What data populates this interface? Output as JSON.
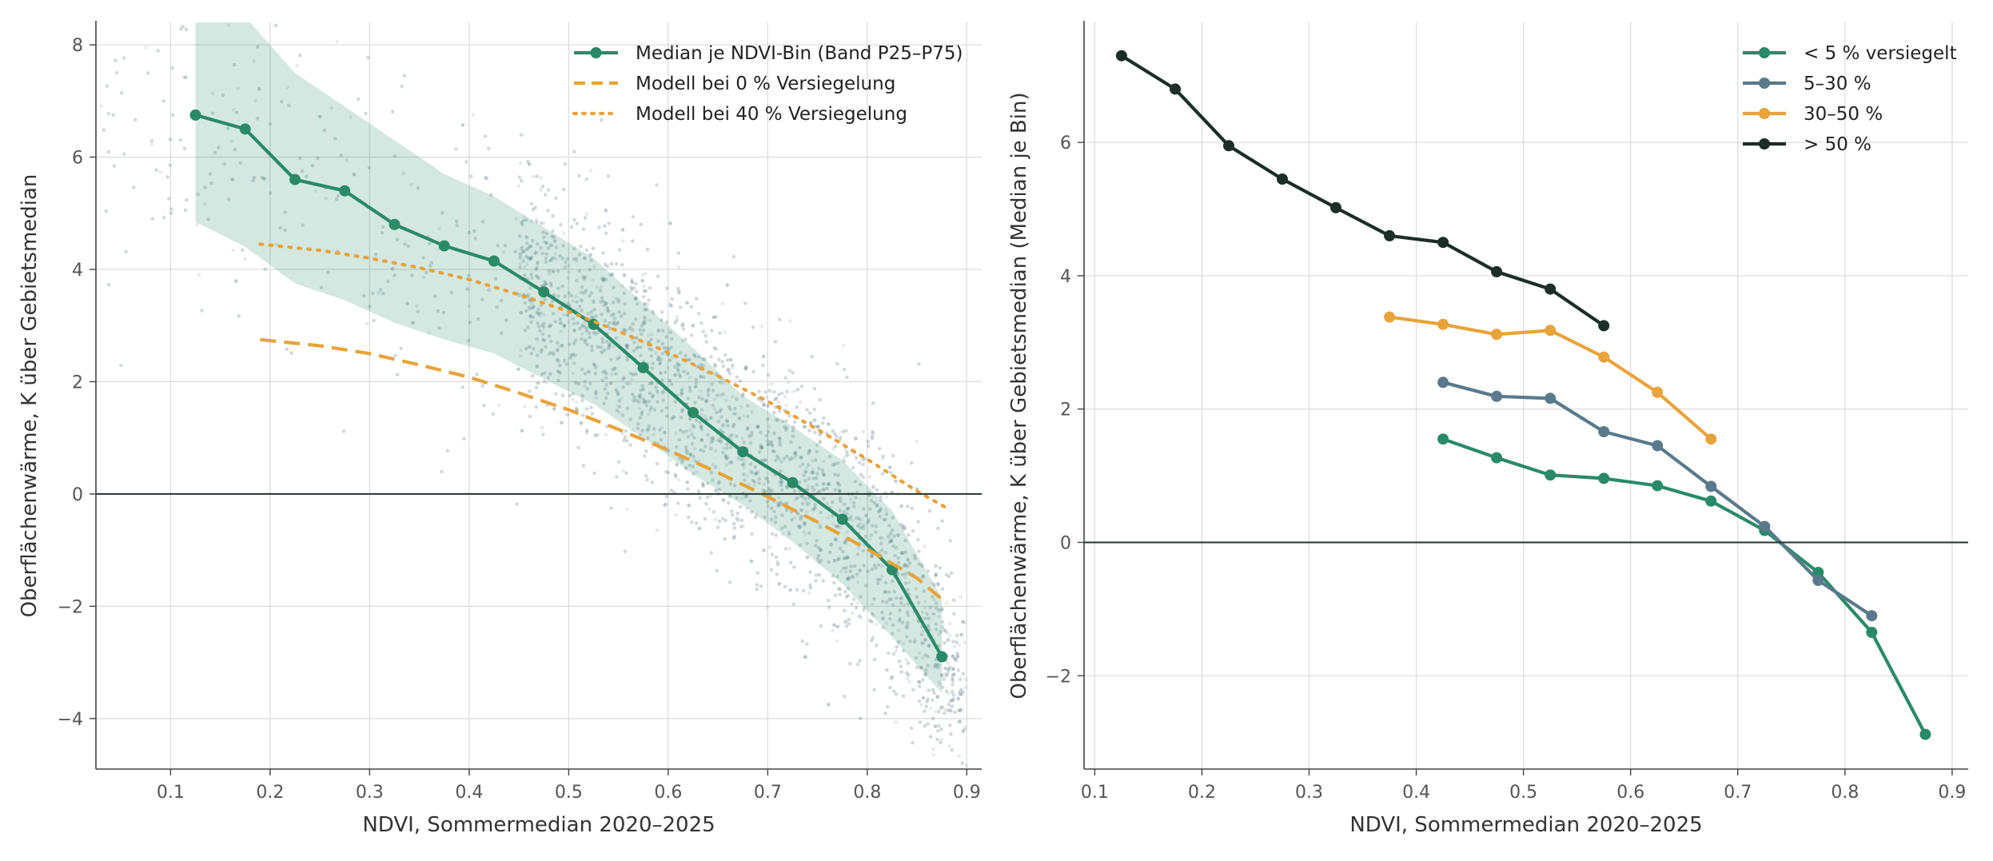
{
  "colors": {
    "median": "#2a8a68",
    "band": "#2a8a68",
    "model": "#e8a33a",
    "scatter": "#6b8091",
    "zero_line": "#22332d",
    "class_lt5": "#2a8a68",
    "class_5_30": "#5a7a8b",
    "class_30_50": "#e8a33a",
    "class_gt50": "#1b2e27"
  },
  "chart_data": [
    {
      "type": "line",
      "xlabel": "NDVI, Sommermedian 2020–2025",
      "ylabel": "Oberflächenwärme, K über Gebietsmedian",
      "xlim": [
        0.025,
        0.915
      ],
      "ylim": [
        -4.9,
        8.4
      ],
      "xticks": [
        0.1,
        0.2,
        0.3,
        0.4,
        0.5,
        0.6,
        0.7,
        0.8,
        0.9
      ],
      "xtick_labels": [
        "0.1",
        "0.2",
        "0.3",
        "0.4",
        "0.5",
        "0.6",
        "0.7",
        "0.8",
        "0.9"
      ],
      "yticks": [
        -4,
        -2,
        0,
        2,
        4,
        6,
        8
      ],
      "ytick_labels": [
        "−4",
        "−2",
        "0",
        "2",
        "4",
        "6",
        "8"
      ],
      "grid": true,
      "legend_position": "top-right",
      "background_scatter": true,
      "series": [
        {
          "name": "Median je NDVI-Bin (Band P25–P75)",
          "style": "solid-markers",
          "x": [
            0.125,
            0.175,
            0.225,
            0.275,
            0.325,
            0.375,
            0.425,
            0.475,
            0.525,
            0.575,
            0.625,
            0.675,
            0.725,
            0.775,
            0.825,
            0.875
          ],
          "y": [
            6.75,
            6.5,
            5.6,
            5.4,
            4.8,
            4.42,
            4.15,
            3.6,
            3.02,
            2.25,
            1.45,
            0.75,
            0.2,
            -0.45,
            -1.35,
            -2.9
          ],
          "band_low": [
            4.85,
            4.4,
            3.75,
            3.45,
            3.05,
            2.75,
            2.5,
            2.05,
            1.6,
            1.0,
            0.35,
            -0.2,
            -0.85,
            -1.6,
            -2.55,
            -3.55
          ],
          "band_high": [
            8.5,
            8.5,
            7.5,
            6.9,
            6.3,
            5.7,
            5.3,
            4.75,
            4.2,
            3.4,
            2.6,
            1.75,
            1.2,
            0.6,
            -0.3,
            -1.85
          ]
        },
        {
          "name": "Modell bei 0 % Versiegelung",
          "style": "dashed",
          "x": [
            0.19,
            0.25,
            0.3,
            0.35,
            0.4,
            0.45,
            0.5,
            0.55,
            0.6,
            0.65,
            0.7,
            0.75,
            0.8,
            0.85,
            0.88
          ],
          "y": [
            2.75,
            2.64,
            2.5,
            2.3,
            2.08,
            1.8,
            1.5,
            1.15,
            0.78,
            0.38,
            -0.05,
            -0.5,
            -0.98,
            -1.5,
            -1.95
          ]
        },
        {
          "name": "Modell bei 40 % Versiegelung",
          "style": "dotted",
          "x": [
            0.19,
            0.25,
            0.3,
            0.35,
            0.4,
            0.45,
            0.5,
            0.55,
            0.6,
            0.65,
            0.7,
            0.75,
            0.8,
            0.85,
            0.88
          ],
          "y": [
            4.45,
            4.34,
            4.2,
            4.03,
            3.82,
            3.55,
            3.25,
            2.9,
            2.52,
            2.1,
            1.65,
            1.15,
            0.62,
            0.05,
            -0.25
          ]
        }
      ]
    },
    {
      "type": "line",
      "xlabel": "NDVI, Sommermedian 2020–2025",
      "ylabel": "Oberflächenwärme, K über Gebietsmedian (Median je Bin)",
      "xlim": [
        0.09,
        0.915
      ],
      "ylim": [
        -3.4,
        7.8
      ],
      "xticks": [
        0.1,
        0.2,
        0.3,
        0.4,
        0.5,
        0.6,
        0.7,
        0.8,
        0.9
      ],
      "xtick_labels": [
        "0.1",
        "0.2",
        "0.3",
        "0.4",
        "0.5",
        "0.6",
        "0.7",
        "0.8",
        "0.9"
      ],
      "yticks": [
        -2,
        0,
        2,
        4,
        6
      ],
      "ytick_labels": [
        "−2",
        "0",
        "2",
        "4",
        "6"
      ],
      "grid": true,
      "legend_position": "top-right",
      "series": [
        {
          "name": "< 5 % versiegelt",
          "x": [
            0.425,
            0.475,
            0.525,
            0.575,
            0.625,
            0.675,
            0.725,
            0.775,
            0.825,
            0.875
          ],
          "y": [
            1.55,
            1.27,
            1.01,
            0.96,
            0.85,
            0.62,
            0.18,
            -0.45,
            -1.35,
            -2.88
          ]
        },
        {
          "name": "5–30 %",
          "x": [
            0.425,
            0.475,
            0.525,
            0.575,
            0.625,
            0.675,
            0.725,
            0.775,
            0.825
          ],
          "y": [
            2.4,
            2.19,
            2.16,
            1.66,
            1.45,
            0.84,
            0.24,
            -0.57,
            -1.1
          ]
        },
        {
          "name": "30–50 %",
          "x": [
            0.375,
            0.425,
            0.475,
            0.525,
            0.575,
            0.625,
            0.675
          ],
          "y": [
            3.38,
            3.27,
            3.12,
            3.18,
            2.78,
            2.25,
            1.55
          ]
        },
        {
          "name": "> 50 %",
          "x": [
            0.125,
            0.175,
            0.225,
            0.275,
            0.325,
            0.375,
            0.425,
            0.475,
            0.525,
            0.575
          ],
          "y": [
            7.3,
            6.8,
            5.95,
            5.45,
            5.02,
            4.6,
            4.5,
            4.06,
            3.8,
            3.25
          ]
        }
      ]
    }
  ]
}
